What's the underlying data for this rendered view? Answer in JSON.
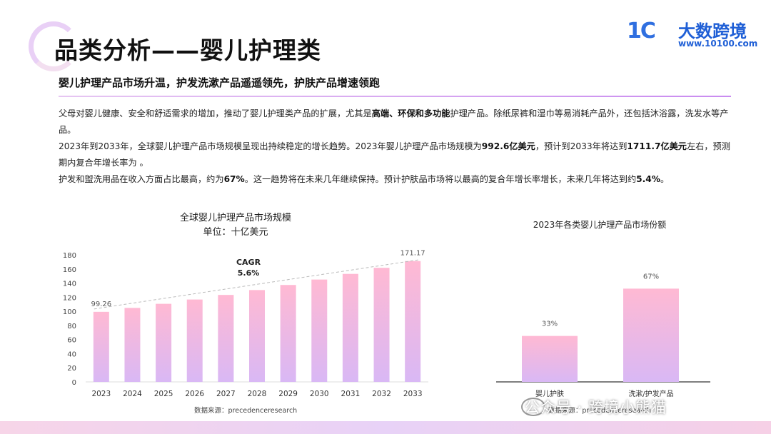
{
  "header": {
    "title": "品类分析——婴儿护理类",
    "logo_mark": "1C",
    "logo_name": "大数跨境",
    "logo_url": "www.10100.com"
  },
  "subtitle": "婴儿护理产品市场升温，护发洗漱产品遥遥领先，护肤产品增速领跑",
  "paragraphs": [
    "父母对婴儿健康、安全和舒适需求的增加，推动了婴儿护理类产品的扩展，尤其是<b>高端、环保和多功能</b>护理产品。除纸尿裤和湿巾等易消耗产品外，还包括沐浴露，洗发水等产品。",
    "2023年到2033年，全球婴儿护理产品市场规模呈现出持续稳定的增长趋势。2023年婴儿护理产品市场规模为<b>992.6亿美元</b>，预计到2033年将达到<b>1711.7亿美元</b>左右，预测期内复合年增长率为 。",
    "护发和盥洗用品在收入方面占比最高，约为<b>67%</b>。这一趋势将在未来几年继续保持。预计护肤品市场将以最高的复合年增长率增长，未来几年将达到约<b>5.4%</b>。"
  ],
  "chart_data": [
    {
      "type": "bar",
      "title": "全球婴儿护理产品市场规模",
      "subtitle": "单位：十亿美元",
      "categories": [
        "2023",
        "2024",
        "2025",
        "2026",
        "2027",
        "2028",
        "2029",
        "2030",
        "2031",
        "2032",
        "2033"
      ],
      "values": [
        99.26,
        104.8,
        110.6,
        116.7,
        123.2,
        130.1,
        137.3,
        145.0,
        153.0,
        161.6,
        171.17
      ],
      "data_labels": {
        "0": "99.26",
        "10": "171.17"
      },
      "ylim": [
        0,
        180
      ],
      "yticks": [
        0,
        20,
        40,
        60,
        80,
        100,
        120,
        140,
        160,
        180
      ],
      "annotation": {
        "line1": "CAGR",
        "line2": "5.6%"
      },
      "source": "数据来源：precedenceresearch",
      "grid": false
    },
    {
      "type": "bar",
      "title": "2023年各类婴儿护理产品市场份额",
      "categories": [
        "婴儿护肤",
        "洗漱/护发产品"
      ],
      "values": [
        33,
        67
      ],
      "data_labels": [
        "33%",
        "67%"
      ],
      "ylim": [
        0,
        100
      ],
      "source": "数据来源：precedenceresearch"
    }
  ],
  "watermark": "公众号 · 跨境小熊猫",
  "colors": {
    "bar_top": "#ffb9d3",
    "bar_bottom": "#d9b8f5",
    "accent": "#c98bf0",
    "brand": "#1f5fd6"
  }
}
